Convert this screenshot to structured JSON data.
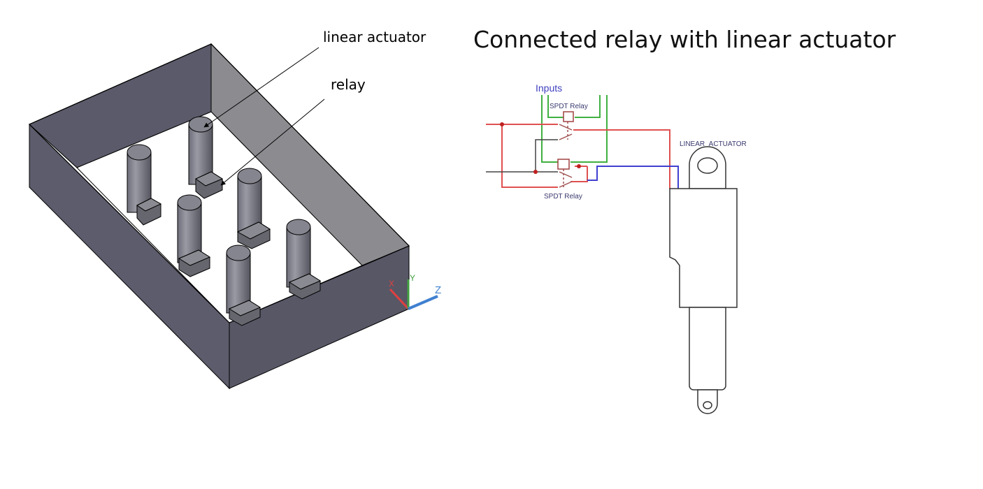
{
  "title": "Connected relay with linear actuator",
  "model_labels": {
    "linear_actuator": "linear actuator",
    "relay": "relay"
  },
  "axis_labels": {
    "x": "X",
    "y": "Y",
    "z": "Z"
  },
  "schematic": {
    "inputs": "Inputs",
    "relay_top": "SPDT Relay",
    "relay_bottom": "SPDT Relay",
    "actuator": "LINEAR_ACTUATOR"
  },
  "colors": {
    "box_dark": "#585868",
    "box_side": "#6a6a78",
    "box_light": "#8a8a90",
    "wire_red": "#e05050",
    "wire_green": "#40b040",
    "wire_blue": "#4040d0",
    "schematic_text": "#4040c0",
    "axis_x": "#e04040",
    "axis_y": "#40a040",
    "axis_z": "#4080d0"
  }
}
